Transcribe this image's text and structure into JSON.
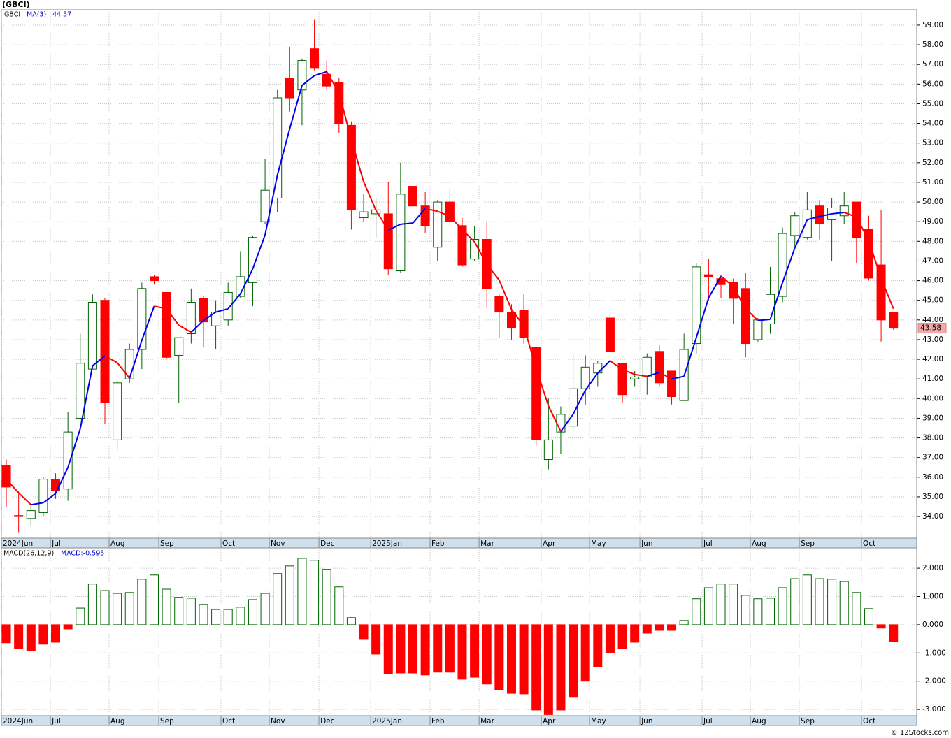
{
  "chart_data": [
    {
      "type": "candlestick",
      "title": "(GBCI)",
      "symbol": "GBCI",
      "ma_name": "MA(3)",
      "ma_readout": "44.57",
      "last_price_label": "43.58",
      "up_color": "#006400",
      "down_color": "#ff0000",
      "ma_up_color": "#0000ee",
      "ma_down_color": "#ff0000",
      "open": [
        36.6,
        34.05,
        33.9,
        34.2,
        35.9,
        35.4,
        39.0,
        41.5,
        45.0,
        37.9,
        41.0,
        42.5,
        46.2,
        45.4,
        42.2,
        43.3,
        45.1,
        43.7,
        44.0,
        45.2,
        45.9,
        49.0,
        50.2,
        56.3,
        55.7,
        57.8,
        56.5,
        56.1,
        53.9,
        49.2,
        49.4,
        49.4,
        46.5,
        50.8,
        49.8,
        47.7,
        50.0,
        48.8,
        47.1,
        48.1,
        45.2,
        44.4,
        44.5,
        42.6,
        36.9,
        38.3,
        38.6,
        40.5,
        41.3,
        44.1,
        41.8,
        41.0,
        41.1,
        42.4,
        41.4,
        39.9,
        42.8,
        46.3,
        46.1,
        45.9,
        45.6,
        43.0,
        43.8,
        45.2,
        48.3,
        48.2,
        49.8,
        49.1,
        49.3,
        50.0,
        48.6,
        46.8,
        44.4
      ],
      "high": [
        36.9,
        35.3,
        34.6,
        36.0,
        36.2,
        39.3,
        43.3,
        45.3,
        45.1,
        40.9,
        42.8,
        45.9,
        46.3,
        45.4,
        43.1,
        45.6,
        45.2,
        45.0,
        45.9,
        47.5,
        48.3,
        52.2,
        55.7,
        57.9,
        57.3,
        59.3,
        57.2,
        56.3,
        54.1,
        50.4,
        50.2,
        51.0,
        52.0,
        51.9,
        50.5,
        50.1,
        50.7,
        49.2,
        48.8,
        49.0,
        45.3,
        44.8,
        45.3,
        42.6,
        40.0,
        39.6,
        42.3,
        42.2,
        41.9,
        44.4,
        41.8,
        41.4,
        42.3,
        42.7,
        41.4,
        43.3,
        46.9,
        47.1,
        46.3,
        46.1,
        46.4,
        44.1,
        46.7,
        48.7,
        49.5,
        50.5,
        50.1,
        50.2,
        50.5,
        50.0,
        49.3,
        49.6,
        44.4
      ],
      "low": [
        34.5,
        33.2,
        33.5,
        34.0,
        34.9,
        34.8,
        38.9,
        41.5,
        38.7,
        37.4,
        40.8,
        41.5,
        45.8,
        42.0,
        39.8,
        42.8,
        42.6,
        42.5,
        43.7,
        45.1,
        44.7,
        48.9,
        49.5,
        54.6,
        53.9,
        56.7,
        55.7,
        53.5,
        48.6,
        49.0,
        48.2,
        46.3,
        46.4,
        49.7,
        48.4,
        47.0,
        48.8,
        46.7,
        47.0,
        44.6,
        43.1,
        43.0,
        42.8,
        37.6,
        36.4,
        37.2,
        38.3,
        39.7,
        40.6,
        42.3,
        39.8,
        40.6,
        40.2,
        40.6,
        39.7,
        39.9,
        42.3,
        45.0,
        45.1,
        43.8,
        42.1,
        42.9,
        43.3,
        44.9,
        47.6,
        48.1,
        48.1,
        47.0,
        48.9,
        46.9,
        46.0,
        42.9,
        43.5
      ],
      "close": [
        35.5,
        34.0,
        34.3,
        35.9,
        35.3,
        38.3,
        41.8,
        44.9,
        39.8,
        40.8,
        42.5,
        45.6,
        46.0,
        42.1,
        43.1,
        44.9,
        43.9,
        44.4,
        45.4,
        46.2,
        48.2,
        50.6,
        55.3,
        55.3,
        57.2,
        56.8,
        55.9,
        54.0,
        49.6,
        49.5,
        49.6,
        46.6,
        50.4,
        49.8,
        48.8,
        50.0,
        49.0,
        46.8,
        48.1,
        45.6,
        44.4,
        43.6,
        43.1,
        37.9,
        37.9,
        39.2,
        40.5,
        41.6,
        41.8,
        42.4,
        40.2,
        41.1,
        42.1,
        40.8,
        40.1,
        42.5,
        46.7,
        46.2,
        45.8,
        45.1,
        42.8,
        44.0,
        45.3,
        48.4,
        49.3,
        49.6,
        48.9,
        49.7,
        49.8,
        48.2,
        46.13,
        44.0,
        43.58
      ],
      "ma": [
        35.9,
        35.2,
        34.6,
        34.7,
        35.17,
        36.5,
        38.47,
        41.67,
        42.17,
        41.83,
        41.03,
        42.97,
        44.7,
        44.57,
        43.73,
        43.37,
        43.97,
        44.4,
        44.57,
        45.33,
        46.6,
        48.33,
        51.37,
        53.73,
        55.93,
        56.43,
        56.63,
        55.57,
        53.17,
        51.03,
        49.57,
        48.57,
        48.87,
        48.93,
        49.67,
        49.53,
        49.27,
        48.6,
        47.97,
        46.83,
        46.03,
        44.53,
        43.7,
        41.53,
        39.63,
        38.33,
        39.2,
        40.43,
        41.3,
        41.93,
        41.47,
        41.23,
        41.13,
        41.33,
        41.0,
        41.13,
        43.1,
        45.13,
        46.23,
        45.7,
        44.57,
        43.97,
        44.03,
        45.9,
        47.67,
        49.1,
        49.27,
        49.4,
        49.47,
        49.23,
        48.04,
        46.11,
        44.57
      ],
      "ylim": [
        32.9,
        59.78
      ],
      "yticks": [
        {
          "value": 34,
          "label": "34.00"
        },
        {
          "value": 35,
          "label": "35.00"
        },
        {
          "value": 36,
          "label": "36.00"
        },
        {
          "value": 37,
          "label": "37.00"
        },
        {
          "value": 38,
          "label": "38.00"
        },
        {
          "value": 39,
          "label": "39.00"
        },
        {
          "value": 40,
          "label": "40.00"
        },
        {
          "value": 41,
          "label": "41.00"
        },
        {
          "value": 42,
          "label": "42.00"
        },
        {
          "value": 43,
          "label": "43.00"
        },
        {
          "value": 44,
          "label": "44.00"
        },
        {
          "value": 45,
          "label": "45.00"
        },
        {
          "value": 46,
          "label": "46.00"
        },
        {
          "value": 47,
          "label": "47.00"
        },
        {
          "value": 48,
          "label": "48.00"
        },
        {
          "value": 49,
          "label": "49.00"
        },
        {
          "value": 50,
          "label": "50.00"
        },
        {
          "value": 51,
          "label": "51.00"
        },
        {
          "value": 52,
          "label": "52.00"
        },
        {
          "value": 53,
          "label": "53.00"
        },
        {
          "value": 54,
          "label": "54.00"
        },
        {
          "value": 55,
          "label": "55.00"
        },
        {
          "value": 56,
          "label": "56.00"
        },
        {
          "value": 57,
          "label": "57.00"
        },
        {
          "value": 58,
          "label": "58.00"
        },
        {
          "value": 59,
          "label": "59.00"
        }
      ],
      "xlim": [
        -0.4,
        73.89
      ],
      "xticks": [
        {
          "value": -0.4,
          "label": "2024Jun"
        },
        {
          "value": 3.58,
          "label": "Jul"
        },
        {
          "value": 8.34,
          "label": "Aug"
        },
        {
          "value": 12.37,
          "label": "Sep"
        },
        {
          "value": 17.42,
          "label": "Oct"
        },
        {
          "value": 21.34,
          "label": "Nov"
        },
        {
          "value": 25.37,
          "label": "Dec"
        },
        {
          "value": 29.57,
          "label": "2025Jan"
        },
        {
          "value": 34.39,
          "label": "Feb"
        },
        {
          "value": 38.37,
          "label": "Mar"
        },
        {
          "value": 43.42,
          "label": "Apr"
        },
        {
          "value": 47.33,
          "label": "May"
        },
        {
          "value": 51.42,
          "label": "Jun"
        },
        {
          "value": 56.47,
          "label": "Jul"
        },
        {
          "value": 60.39,
          "label": "Aug"
        },
        {
          "value": 64.36,
          "label": "Sep"
        },
        {
          "value": 69.41,
          "label": "Oct"
        }
      ],
      "grid": true
    },
    {
      "type": "bar",
      "title": "MACD(26,12,9)",
      "readout": "MACD:-0.595",
      "up_color": "#006400",
      "down_color": "#ff0000",
      "values": [
        -0.64,
        -0.84,
        -0.92,
        -0.69,
        -0.62,
        -0.15,
        0.59,
        1.44,
        1.21,
        1.11,
        1.14,
        1.61,
        1.76,
        1.26,
        0.97,
        0.94,
        0.72,
        0.54,
        0.54,
        0.62,
        0.89,
        1.11,
        1.81,
        2.08,
        2.35,
        2.28,
        1.96,
        1.34,
        0.25,
        -0.52,
        -1.04,
        -1.73,
        -1.71,
        -1.71,
        -1.78,
        -1.68,
        -1.68,
        -1.93,
        -1.86,
        -2.1,
        -2.3,
        -2.43,
        -2.45,
        -3.02,
        -3.18,
        -3.02,
        -2.57,
        -2.0,
        -1.49,
        -0.99,
        -0.84,
        -0.62,
        -0.3,
        -0.2,
        -0.2,
        0.15,
        0.92,
        1.31,
        1.44,
        1.44,
        1.04,
        0.92,
        0.94,
        1.31,
        1.63,
        1.76,
        1.63,
        1.61,
        1.53,
        1.14,
        0.57,
        -0.12,
        -0.595
      ],
      "ylim": [
        -3.22,
        2.72
      ],
      "yticks": [
        {
          "value": 2,
          "label": "2.000"
        },
        {
          "value": 1,
          "label": "1.000"
        },
        {
          "value": 0,
          "label": "0.000"
        },
        {
          "value": -1,
          "label": "-1.000"
        },
        {
          "value": -2,
          "label": "-2.000"
        },
        {
          "value": -3,
          "label": "-3.000"
        }
      ],
      "xlim": [
        -0.4,
        73.89
      ],
      "xticks": [
        {
          "value": -0.4,
          "label": "2024Jun"
        },
        {
          "value": 3.58,
          "label": "Jul"
        },
        {
          "value": 8.34,
          "label": "Aug"
        },
        {
          "value": 12.37,
          "label": "Sep"
        },
        {
          "value": 17.42,
          "label": "Oct"
        },
        {
          "value": 21.34,
          "label": "Nov"
        },
        {
          "value": 25.37,
          "label": "Dec"
        },
        {
          "value": 29.57,
          "label": "2025Jan"
        },
        {
          "value": 34.39,
          "label": "Feb"
        },
        {
          "value": 38.37,
          "label": "Mar"
        },
        {
          "value": 43.42,
          "label": "Apr"
        },
        {
          "value": 47.33,
          "label": "May"
        },
        {
          "value": 51.42,
          "label": "Jun"
        },
        {
          "value": 56.47,
          "label": "Jul"
        },
        {
          "value": 60.39,
          "label": "Aug"
        },
        {
          "value": 64.36,
          "label": "Sep"
        },
        {
          "value": 69.41,
          "label": "Oct"
        }
      ],
      "grid": true
    }
  ],
  "footer": "© 12Stocks.com"
}
